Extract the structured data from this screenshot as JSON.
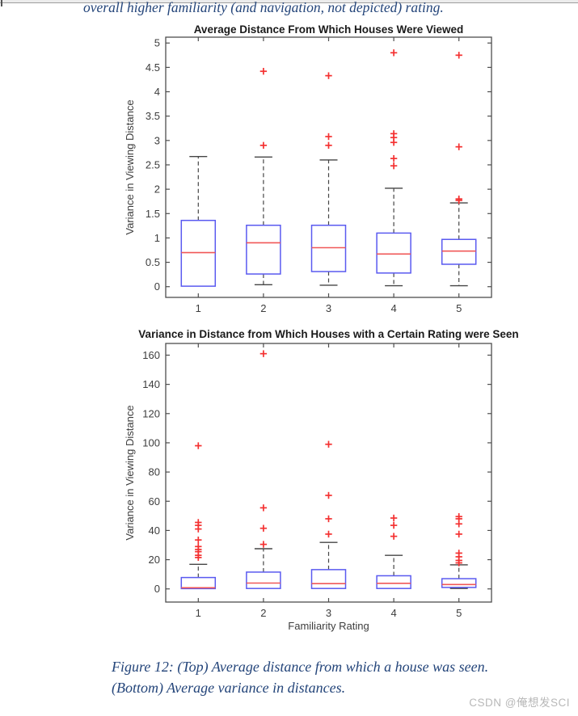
{
  "page": {
    "header_note": "overall higher familiarity (and navigation, not depicted) rating.",
    "caption_line1": "Figure 12: (Top) Average distance from which a house was seen.",
    "caption_line2": "(Bottom) Average variance in distances.",
    "watermark": "CSDN @俺想发SCI",
    "colors": {
      "note_text": "#24457a",
      "watermark_text": "#b8b8b8"
    }
  },
  "chart_style": {
    "box_edge": "#5a5af0",
    "median": "#f05858",
    "outlier": "#f43131",
    "whisker": "#454545",
    "axis": "#4d4d4d",
    "tick_label": "#3d3d3d",
    "title": "#1a1a1a"
  },
  "chart_data": [
    {
      "type": "box",
      "title": "Average Distance From Which Houses Were Viewed",
      "xlabel": "",
      "ylabel": "Variance in Viewing Distance",
      "categories": [
        "1",
        "2",
        "3",
        "4",
        "5"
      ],
      "yticks": [
        0,
        0.5,
        1,
        1.5,
        2,
        2.5,
        3,
        3.5,
        4,
        4.5,
        5
      ],
      "ylim": [
        -0.22,
        5.12
      ],
      "grid": false,
      "boxes": [
        {
          "category": "1",
          "q1": 0.01,
          "median": 0.7,
          "q3": 1.36,
          "whisker_low": 0.01,
          "whisker_high": 2.67,
          "outliers": []
        },
        {
          "category": "2",
          "q1": 0.26,
          "median": 0.9,
          "q3": 1.26,
          "whisker_low": 0.04,
          "whisker_high": 2.66,
          "outliers": [
            4.42,
            2.9
          ]
        },
        {
          "category": "3",
          "q1": 0.31,
          "median": 0.8,
          "q3": 1.26,
          "whisker_low": 0.03,
          "whisker_high": 2.6,
          "outliers": [
            4.33,
            3.08,
            2.9
          ]
        },
        {
          "category": "4",
          "q1": 0.28,
          "median": 0.67,
          "q3": 1.1,
          "whisker_low": 0.02,
          "whisker_high": 2.02,
          "outliers": [
            4.8,
            3.14,
            3.06,
            2.96,
            2.63,
            2.48
          ]
        },
        {
          "category": "5",
          "q1": 0.46,
          "median": 0.73,
          "q3": 0.97,
          "whisker_low": 0.02,
          "whisker_high": 1.72,
          "outliers": [
            4.75,
            2.87,
            1.8,
            1.77
          ]
        }
      ]
    },
    {
      "type": "box",
      "title": "Variance in Distance from Which Houses with a Certain Rating were Seen",
      "xlabel": "Familiarity Rating",
      "ylabel": "Variance in Viewing Distance",
      "categories": [
        "1",
        "2",
        "3",
        "4",
        "5"
      ],
      "yticks": [
        0,
        20,
        40,
        60,
        80,
        100,
        120,
        140,
        160
      ],
      "ylim": [
        -9,
        168
      ],
      "grid": false,
      "boxes": [
        {
          "category": "1",
          "q1": 0.2,
          "median": 0.8,
          "q3": 7.8,
          "whisker_low": 0.2,
          "whisker_high": 16.8,
          "outliers": [
            98,
            45.5,
            43.5,
            41,
            33.5,
            29,
            27,
            25.5,
            23,
            21.5
          ]
        },
        {
          "category": "2",
          "q1": 0.3,
          "median": 4.0,
          "q3": 11.5,
          "whisker_low": 0.1,
          "whisker_high": 27.5,
          "outliers": [
            161,
            55.5,
            41.5,
            30.5
          ]
        },
        {
          "category": "3",
          "q1": 0.3,
          "median": 3.6,
          "q3": 13.2,
          "whisker_low": 0.1,
          "whisker_high": 31.8,
          "outliers": [
            99,
            64,
            48,
            37.5
          ]
        },
        {
          "category": "4",
          "q1": 0.3,
          "median": 3.8,
          "q3": 9.0,
          "whisker_low": 0.1,
          "whisker_high": 23.0,
          "outliers": [
            48.5,
            43.5,
            36
          ]
        },
        {
          "category": "5",
          "q1": 1.0,
          "median": 3.0,
          "q3": 7.0,
          "whisker_low": 0.3,
          "whisker_high": 16.5,
          "outliers": [
            49.5,
            48,
            44.5,
            37.5,
            24.5,
            22,
            19.5,
            17.8
          ]
        }
      ]
    }
  ]
}
